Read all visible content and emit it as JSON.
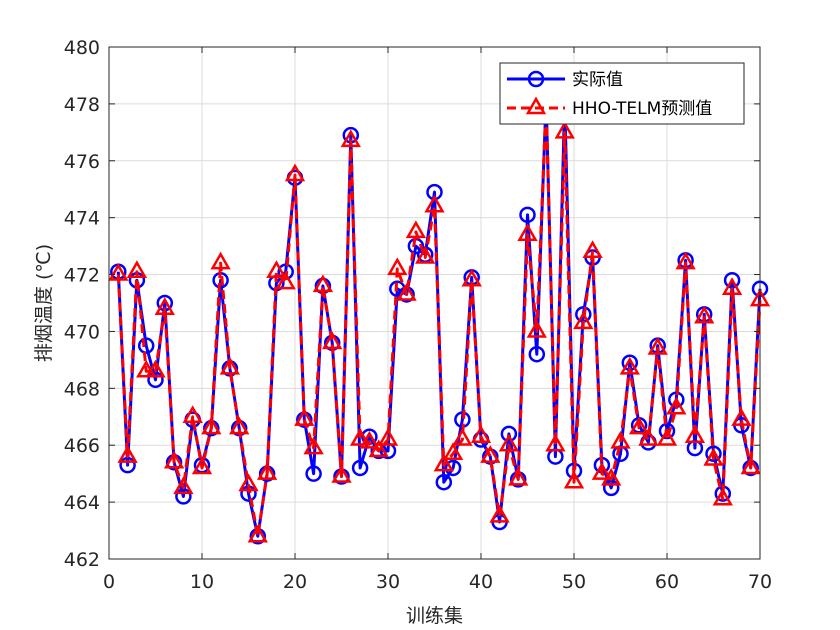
{
  "chart_data": {
    "type": "line",
    "title": "",
    "xlabel": "训练集",
    "ylabel": "排烟温度 (℃)",
    "xlim": [
      0,
      70
    ],
    "ylim": [
      462,
      480
    ],
    "xticks": [
      0,
      10,
      20,
      30,
      40,
      50,
      60,
      70
    ],
    "yticks": [
      462,
      464,
      466,
      468,
      470,
      472,
      474,
      476,
      478,
      480
    ],
    "grid": true,
    "legend_position": "top-right",
    "x": [
      1,
      2,
      3,
      4,
      5,
      6,
      7,
      8,
      9,
      10,
      11,
      12,
      13,
      14,
      15,
      16,
      17,
      18,
      19,
      20,
      21,
      22,
      23,
      24,
      25,
      26,
      27,
      28,
      29,
      30,
      31,
      32,
      33,
      34,
      35,
      36,
      37,
      38,
      39,
      40,
      41,
      42,
      43,
      44,
      45,
      46,
      47,
      48,
      49,
      50,
      51,
      52,
      53,
      54,
      55,
      56,
      57,
      58,
      59,
      60,
      61,
      62,
      63,
      64,
      65,
      66,
      67,
      68,
      69,
      70
    ],
    "series": [
      {
        "name": "实际值",
        "color": "#0000ff",
        "marker": "circle",
        "line_style": "solid",
        "values": [
          472.1,
          465.3,
          471.8,
          469.5,
          468.3,
          471.0,
          465.4,
          464.2,
          466.9,
          465.3,
          466.6,
          471.8,
          468.7,
          466.6,
          464.3,
          462.8,
          465.0,
          471.7,
          472.1,
          475.4,
          466.9,
          465.0,
          471.6,
          469.6,
          464.9,
          476.9,
          465.2,
          466.3,
          465.8,
          465.8,
          471.5,
          471.3,
          473.0,
          472.7,
          474.9,
          464.7,
          465.2,
          466.9,
          471.9,
          466.2,
          465.6,
          463.3,
          466.4,
          464.8,
          474.1,
          469.2,
          478.2,
          465.6,
          478.1,
          465.1,
          470.6,
          472.6,
          465.3,
          464.5,
          465.7,
          468.9,
          466.7,
          466.1,
          469.5,
          466.5,
          467.6,
          472.5,
          465.9,
          470.6,
          465.7,
          464.3,
          471.8,
          466.7,
          465.2,
          471.5
        ]
      },
      {
        "name": "HHO-TELM预测值",
        "color": "#ff0000",
        "marker": "triangle",
        "line_style": "dashed",
        "values": [
          472.0,
          465.6,
          472.1,
          468.6,
          468.6,
          470.8,
          465.4,
          464.5,
          467.0,
          465.2,
          466.6,
          472.4,
          468.7,
          466.6,
          464.6,
          462.8,
          465.0,
          472.1,
          471.7,
          475.5,
          466.9,
          465.9,
          471.6,
          469.6,
          464.9,
          476.7,
          466.2,
          466.1,
          465.8,
          466.2,
          472.2,
          471.3,
          473.5,
          472.6,
          474.4,
          465.3,
          465.7,
          466.2,
          471.8,
          466.3,
          465.6,
          463.5,
          466.0,
          464.8,
          473.4,
          470.0,
          478.0,
          466.0,
          477.0,
          464.7,
          470.3,
          472.8,
          465.0,
          464.8,
          466.1,
          468.7,
          466.6,
          466.2,
          469.4,
          466.2,
          467.3,
          472.4,
          466.3,
          470.5,
          465.5,
          464.1,
          471.5,
          466.9,
          465.2,
          471.1
        ]
      }
    ]
  }
}
